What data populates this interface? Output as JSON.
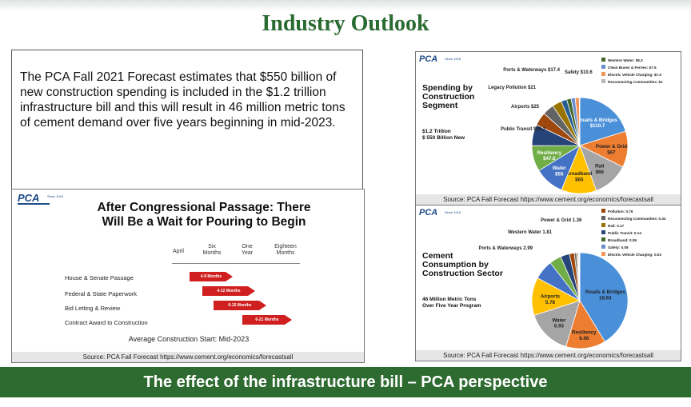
{
  "header": {
    "title": "Industry Outlook"
  },
  "intro": {
    "text": "The PCA Fall 2021 Forecast estimates that $550 billion of new construction spending is included in the $1.2 trillion infrastructure bill and this will result in 46 million metric tons of cement demand over five years beginning in mid-2023."
  },
  "logo": {
    "text": "PCA",
    "sub": "Since 1916"
  },
  "timeline": {
    "title_line1": "After Congressional Passage: There",
    "title_line2": "Will Be a Wait for Pouring to Begin",
    "columns": [
      "April",
      "Six Months",
      "One Year",
      "Eighteen Months"
    ],
    "rows": [
      {
        "label": "House & Senate Passage",
        "bar": "4-9 Months"
      },
      {
        "label": "Federal & State Paperwork",
        "bar": "4-12 Months"
      },
      {
        "label": "Bid Letting & Review",
        "bar": "6-15 Months"
      },
      {
        "label": "Contract Award to Construction",
        "bar": "6-21 Months"
      }
    ],
    "footer": "Average Construction Start: Mid-2023",
    "source": "Source: PCA Fall Forecast https://www.cement.org/economics/forecastsall"
  },
  "colors": {
    "brand_green": "#2e6b30",
    "red_arrow": "#cf1f1f",
    "blue": "#4a7fd4",
    "orange": "#ed7d31",
    "gray": "#a5a5a5",
    "gold": "#ffc000"
  },
  "chart_data": [
    {
      "type": "pie",
      "title": "Spending by Construction Segment",
      "note_line1": "$1.2 Trillion",
      "note_line2": "$ 550 Billion New",
      "source": "Source: PCA Fall Forecast https://www.cement.org/economics/forecastsall",
      "slices": [
        {
          "label": "Roads & Bridges",
          "display": "$110.7",
          "value": 110.7,
          "color": "#4a90d9"
        },
        {
          "label": "Power & Grid",
          "display": "$67",
          "value": 67,
          "color": "#ed7d31"
        },
        {
          "label": "Rail",
          "display": "$66",
          "value": 66,
          "color": "#a5a5a5"
        },
        {
          "label": "Broadband",
          "display": "$65",
          "value": 65,
          "color": "#ffc000"
        },
        {
          "label": "Water",
          "display": "$55",
          "value": 55,
          "color": "#4472c4"
        },
        {
          "label": "Resiliency",
          "display": "$47.6",
          "value": 47.6,
          "color": "#70ad47"
        },
        {
          "label": "Public Transit",
          "display": "$39.2",
          "value": 39.2,
          "color": "#264478"
        },
        {
          "label": "Airports",
          "display": "$25",
          "value": 25,
          "color": "#9e480e"
        },
        {
          "label": "Legacy Pollution",
          "display": "$21",
          "value": 21,
          "color": "#636363"
        },
        {
          "label": "Ports & Waterways",
          "display": "$17.4",
          "value": 17.4,
          "color": "#997300"
        },
        {
          "label": "Safety",
          "display": "$10.6",
          "value": 10.6,
          "color": "#255e91"
        },
        {
          "label": "Western Water",
          "display": "$8.3",
          "value": 8.3,
          "color": "#43682b"
        },
        {
          "label": "Clean Buses & Ferries",
          "display": "$7.5",
          "value": 7.5,
          "color": "#698ed0"
        },
        {
          "label": "Electric Vehicle Charging",
          "display": "$7.5",
          "value": 7.5,
          "color": "#f1975a"
        },
        {
          "label": "Reconnecting Communities",
          "display": "$1",
          "value": 1,
          "color": "#b7b7b7"
        }
      ]
    },
    {
      "type": "pie",
      "title": "Cement Consumption by Construction Sector",
      "note_line1": "46 Million Metric Tons",
      "note_line2": "Over Five Year Program",
      "source": "Source: PCA Fall Forecast https://www.cement.org/economics/forecastsall",
      "slices": [
        {
          "label": "Roads & Bridges",
          "display": "18.63",
          "value": 18.63,
          "color": "#4a90d9"
        },
        {
          "label": "Resiliency",
          "display": "6.06",
          "value": 6.06,
          "color": "#ed7d31"
        },
        {
          "label": "Water",
          "display": "6.93",
          "value": 6.93,
          "color": "#a5a5a5"
        },
        {
          "label": "Airports",
          "display": "5.78",
          "value": 5.78,
          "color": "#ffc000"
        },
        {
          "label": "Ports & Waterways",
          "display": "2.99",
          "value": 2.99,
          "color": "#4472c4"
        },
        {
          "label": "Western Water",
          "display": "1.81",
          "value": 1.81,
          "color": "#70ad47"
        },
        {
          "label": "Power & Grid",
          "display": "1.36",
          "value": 1.36,
          "color": "#264478"
        },
        {
          "label": "Pollution",
          "display": "0.76",
          "value": 0.76,
          "color": "#9e480e"
        },
        {
          "label": "Reconnecting Communities",
          "display": "0.32",
          "value": 0.32,
          "color": "#636363"
        },
        {
          "label": "Rail",
          "display": "0.17",
          "value": 0.17,
          "color": "#997300"
        },
        {
          "label": "Public Transit",
          "display": "0.14",
          "value": 0.14,
          "color": "#264478"
        },
        {
          "label": "Broadband",
          "display": "0.09",
          "value": 0.09,
          "color": "#43682b"
        },
        {
          "label": "Safety",
          "display": "0.08",
          "value": 0.08,
          "color": "#698ed0"
        },
        {
          "label": "Electric Vehicle Charging",
          "display": "0.03",
          "value": 0.03,
          "color": "#f1975a"
        }
      ]
    }
  ],
  "footer": {
    "text": "The effect of the infrastructure bill – PCA perspective"
  }
}
